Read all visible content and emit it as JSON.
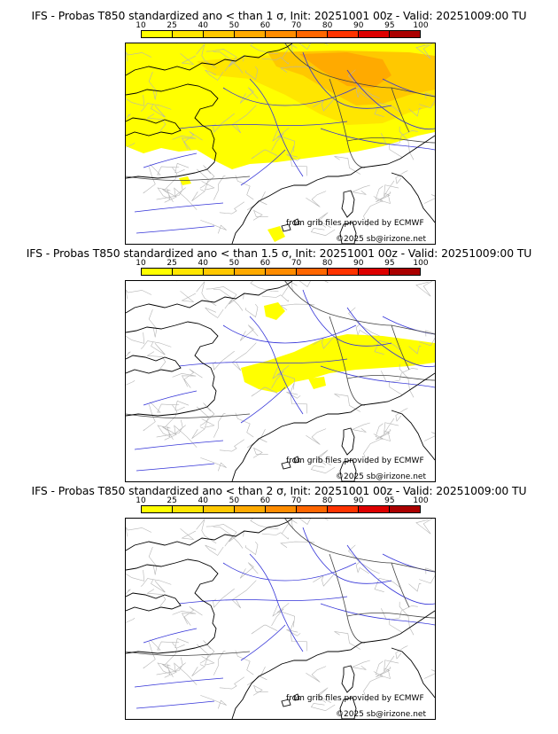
{
  "legend": {
    "ticks": [
      "10",
      "25",
      "40",
      "50",
      "60",
      "70",
      "80",
      "90",
      "95",
      "100"
    ],
    "colors": [
      "#ffff00",
      "#ffe600",
      "#ffc800",
      "#ffaa00",
      "#ff8c00",
      "#ff6600",
      "#ff3300",
      "#dd0000",
      "#aa0000",
      "#660000"
    ]
  },
  "panels": [
    {
      "title": "IFS - Probas T850  standardized ano < than 1 σ, Init: 20251001 00z - Valid: 20251009:00 TU",
      "credit_source": "from grib files provided by ECMWF",
      "credit_copyright": "©2025 sb@irizone.net",
      "field": "broad"
    },
    {
      "title": "IFS - Probas T850  standardized ano < than 1.5 σ, Init: 20251001 00z - Valid: 20251009:00 TU",
      "credit_source": "from grib files provided by ECMWF",
      "credit_copyright": "©2025 sb@irizone.net",
      "field": "narrow"
    },
    {
      "title": "IFS - Probas T850  standardized ano < than 2 σ, Init: 20251001 00z - Valid: 20251009:00 TU",
      "credit_source": "from grib files provided by ECMWF",
      "credit_copyright": "©2025 sb@irizone.net",
      "field": "none"
    }
  ]
}
